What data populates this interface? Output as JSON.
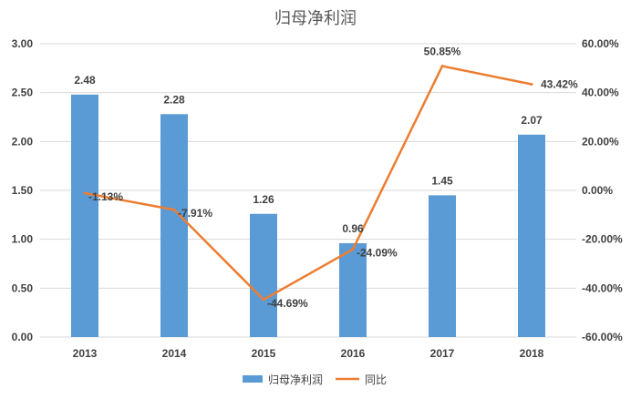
{
  "chart_data": {
    "type": "bar",
    "title": "归母净利润",
    "categories": [
      "2013",
      "2014",
      "2015",
      "2016",
      "2017",
      "2018"
    ],
    "series": [
      {
        "name": "归母净利润",
        "type": "bar",
        "axis": "left",
        "values": [
          2.48,
          2.28,
          1.26,
          0.96,
          1.45,
          2.07
        ],
        "labels": [
          "2.48",
          "2.28",
          "1.26",
          "0.96",
          "1.45",
          "2.07"
        ],
        "color": "#5b9bd5"
      },
      {
        "name": "同比",
        "type": "line",
        "axis": "right",
        "values": [
          -1.13,
          -7.91,
          -44.69,
          -24.09,
          50.85,
          43.42
        ],
        "labels": [
          "-1.13%",
          "-7.91%",
          "-44.69%",
          "-24.09%",
          "50.85%",
          "43.42%"
        ],
        "color": "#ed7d31"
      }
    ],
    "y_left": {
      "range": [
        0,
        3
      ],
      "ticks": [
        "0.00",
        "0.50",
        "1.00",
        "1.50",
        "2.00",
        "2.50",
        "3.00"
      ]
    },
    "y_right": {
      "range": [
        -60,
        60
      ],
      "ticks": [
        "-60.00%",
        "-40.00%",
        "-20.00%",
        "0.00%",
        "20.00%",
        "40.00%",
        "60.00%"
      ]
    },
    "grid": true,
    "legend": "bottom"
  }
}
